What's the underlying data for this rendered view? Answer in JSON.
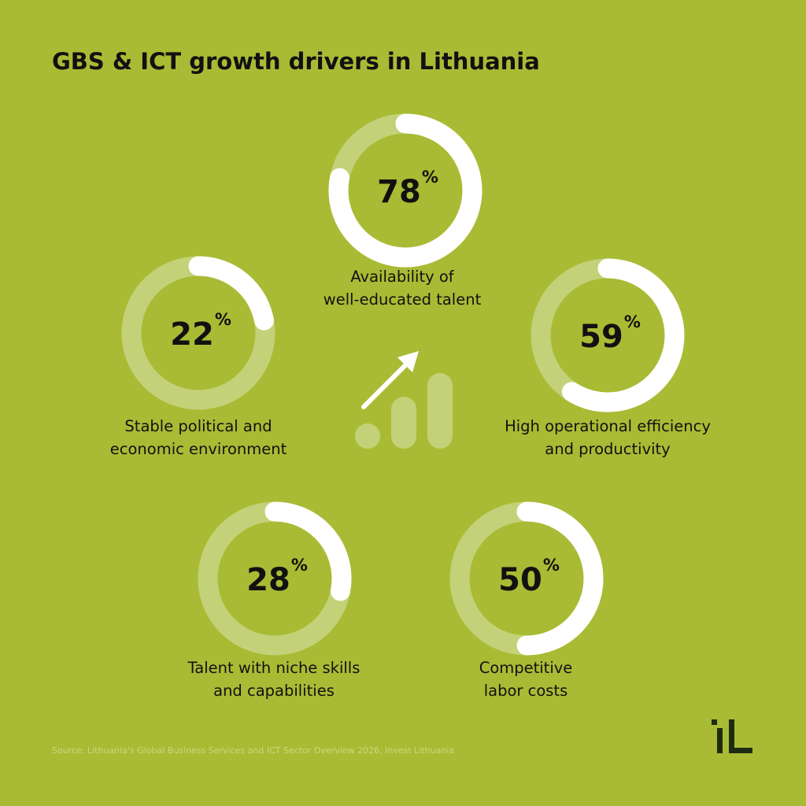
{
  "chart_data": {
    "type": "donut",
    "title": "GBS & ICT growth drivers in Lithuania",
    "unit": "%",
    "ylim": [
      0,
      100
    ],
    "color": "#ffffff",
    "track_color": "#c3d279",
    "items": [
      {
        "value": 78,
        "label": [
          "Availability of",
          "well-educated talent"
        ]
      },
      {
        "value": 22,
        "label": [
          "Stable political and",
          "economic environment"
        ]
      },
      {
        "value": 59,
        "label": [
          "High operational efficiency",
          "and productivity"
        ]
      },
      {
        "value": 28,
        "label": [
          "Talent with niche skills",
          "and capabilities"
        ]
      },
      {
        "value": 50,
        "label": [
          "Competitive",
          "labor costs"
        ]
      }
    ],
    "source": "Source: Lithuania's Global Business Services and ICT Sector Overview 2026, Invest Lithuania"
  }
}
